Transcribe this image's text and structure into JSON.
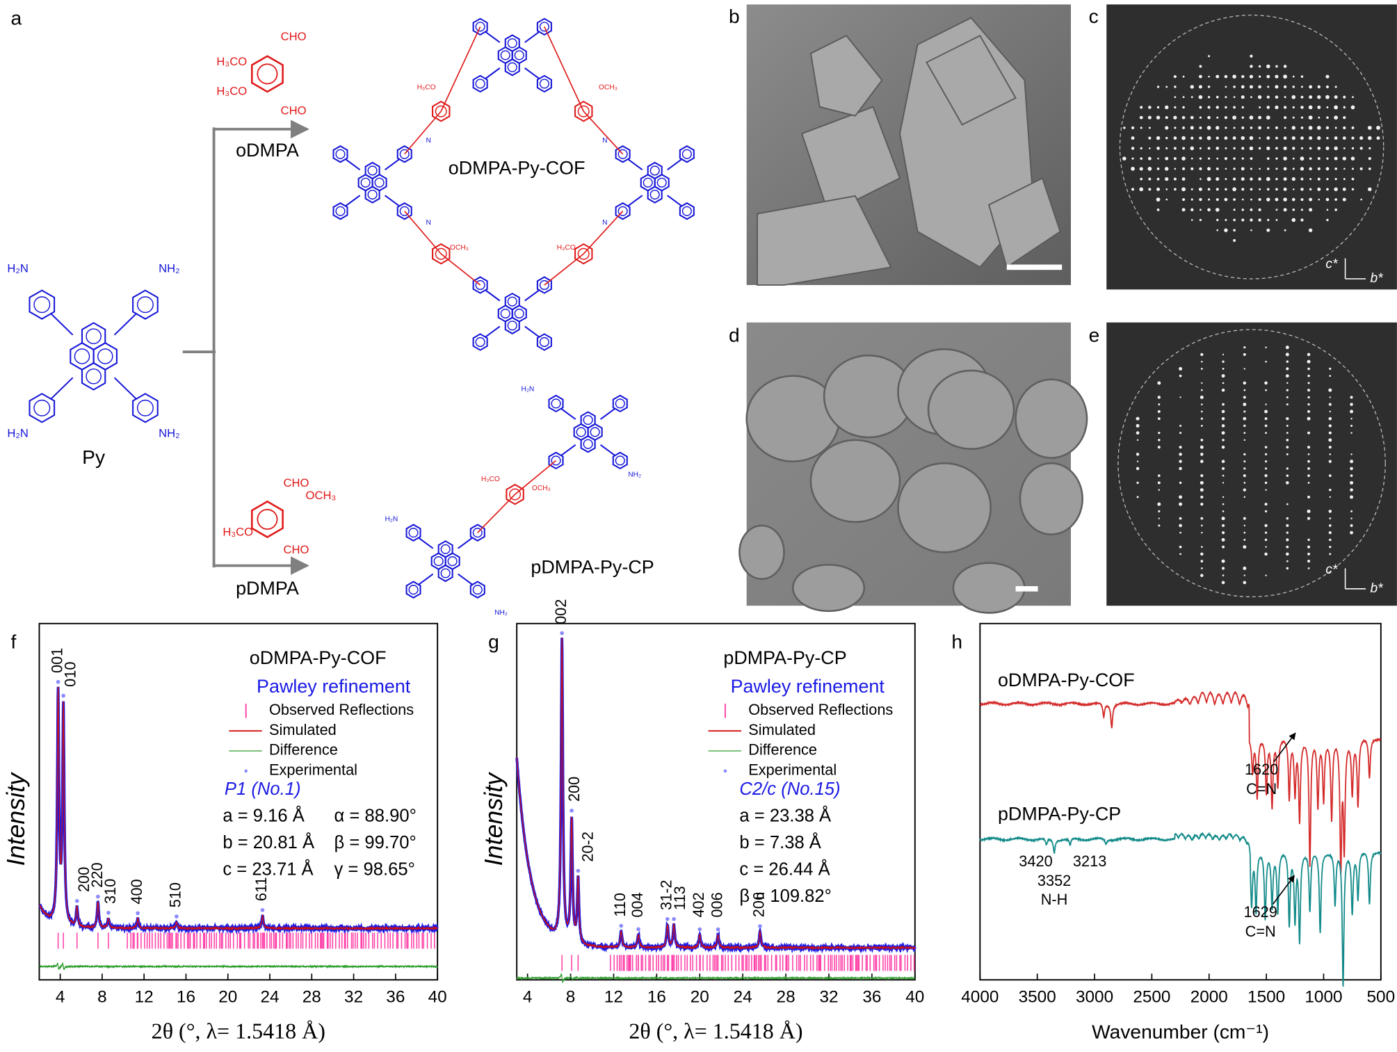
{
  "panel_letters": {
    "a": "a",
    "b": "b",
    "c": "c",
    "d": "d",
    "e": "e",
    "f": "f",
    "g": "g",
    "h": "h"
  },
  "scheme": {
    "monomer": {
      "label": "Py",
      "nh2": "NH₂",
      "h2n": "H₂N"
    },
    "odmpa": {
      "label": "oDMPA",
      "cho": "CHO",
      "h3co": "H₃CO"
    },
    "pdmpa": {
      "label": "pDMPA",
      "cho": "CHO",
      "och3": "OCH₃",
      "h3co": "H₃CO"
    },
    "cof": {
      "label": "oDMPA-Py-COF",
      "och3": "OCH₃",
      "h3co": "H₃CO",
      "n": "N"
    },
    "cp": {
      "label": "pDMPA-Py-CP",
      "nh2": "NH₂",
      "h2n": "H₂N",
      "och3": "OCH₃",
      "h3co": "H₃CO"
    }
  },
  "diffraction": {
    "axis_c": "c*",
    "axis_b": "b*"
  },
  "xrd": [
    {
      "title": "oDMPA-Py-COF",
      "method": "Pawley refinement",
      "legend": [
        "Observed Reflections",
        "Simulated",
        "Difference",
        "Experimental"
      ],
      "space_group": "P1 (No.1)",
      "params": [
        "a = 9.16 Å",
        "α = 88.90°",
        "b = 20.81 Å",
        "β = 99.70°",
        "c = 23.71 Å",
        "γ = 98.65°"
      ],
      "ylabel": "Intensity",
      "xlabel": "2θ (°, λ= 1.5418 Å)",
      "xlim": [
        2,
        40
      ],
      "xticks": [
        4,
        8,
        12,
        16,
        20,
        24,
        28,
        32,
        36,
        40
      ],
      "background": [
        0.18,
        0.11
      ],
      "colors": {
        "experimental": "#1a1ae6",
        "simulated": "#d01010",
        "difference": "#2f9e2f",
        "reflections": "#ff3fa8"
      },
      "peaks": [
        {
          "label": "001",
          "x": 3.8,
          "amp": 0.71
        },
        {
          "label": "010",
          "x": 4.3,
          "amp": 0.67
        },
        {
          "label": "200",
          "x": 5.6,
          "amp": 0.06
        },
        {
          "label": "220",
          "x": 7.6,
          "amp": 0.08
        },
        {
          "label": "310",
          "x": 8.6,
          "amp": 0.03
        },
        {
          "label": "400",
          "x": 11.4,
          "amp": 0.03
        },
        {
          "label": "510",
          "x": 15.1,
          "amp": 0.02
        },
        {
          "label": "611",
          "x": 23.3,
          "amp": 0.04
        }
      ]
    },
    {
      "title": "pDMPA-Py-CP",
      "method": "Pawley refinement",
      "legend": [
        "Observed Reflections",
        "Simulated",
        "Difference",
        "Experimental"
      ],
      "space_group": "C2/c (No.15)",
      "params": [
        "a = 23.38 Å",
        "b = 7.38 Å",
        "c = 26.44 Å",
        "β = 109.82°"
      ],
      "ylabel": "Intensity",
      "xlabel": "2θ (°, λ= 1.5418 Å)",
      "xlim": [
        3,
        40
      ],
      "xticks": [
        4,
        8,
        12,
        16,
        20,
        24,
        28,
        32,
        36,
        40
      ],
      "background": [
        0.64,
        0.05
      ],
      "colors": {
        "experimental": "#1a1ae6",
        "simulated": "#d01010",
        "difference": "#2f9e2f",
        "reflections": "#ff3fa8"
      },
      "peaks": [
        {
          "label": "002",
          "x": 7.2,
          "amp": 0.93
        },
        {
          "label": "200",
          "x": 8.1,
          "amp": 0.38
        },
        {
          "label": "20-2",
          "x": 8.7,
          "amp": 0.2
        },
        {
          "label": "110",
          "x": 12.7,
          "amp": 0.05
        },
        {
          "label": "004",
          "x": 14.3,
          "amp": 0.04
        },
        {
          "label": "31-2",
          "x": 17.0,
          "amp": 0.07
        },
        {
          "label": "113",
          "x": 17.6,
          "amp": 0.07
        },
        {
          "label": "402",
          "x": 20.0,
          "amp": 0.04
        },
        {
          "label": "006",
          "x": 21.7,
          "amp": 0.04
        },
        {
          "label": "206",
          "x": 25.6,
          "amp": 0.05
        }
      ]
    }
  ],
  "ir": {
    "xlabel": "Wavenumber (cm⁻¹)",
    "xlim": [
      4000,
      500
    ],
    "xticks": [
      4000,
      3500,
      3000,
      2500,
      2000,
      1500,
      1000,
      500
    ],
    "series": [
      {
        "name": "oDMPA-Py-COF",
        "color": "#d42a2a",
        "edge": 1650,
        "bands": [
          [
            2920,
            0.1
          ],
          [
            2850,
            0.17
          ],
          [
            1620,
            0.25
          ],
          [
            1580,
            0.45
          ],
          [
            1500,
            0.4
          ],
          [
            1450,
            0.5
          ],
          [
            1400,
            0.35
          ],
          [
            1300,
            0.45
          ],
          [
            1250,
            0.4
          ],
          [
            1210,
            0.6
          ],
          [
            1120,
            0.95
          ],
          [
            1050,
            0.5
          ],
          [
            1000,
            0.45
          ],
          [
            930,
            0.6
          ],
          [
            850,
            0.95
          ],
          [
            820,
            0.8
          ],
          [
            750,
            0.4
          ],
          [
            700,
            0.5
          ],
          [
            600,
            0.3
          ]
        ],
        "peak_labels": [
          {
            "wavenumber": 1620,
            "label": "C=N"
          }
        ]
      },
      {
        "name": "pDMPA-Py-CP",
        "color": "#138a8a",
        "edge": 1640,
        "bands": [
          [
            3420,
            0.05
          ],
          [
            3352,
            0.1
          ],
          [
            3213,
            0.05
          ],
          [
            2900,
            0.04
          ],
          [
            1629,
            0.4
          ],
          [
            1590,
            0.45
          ],
          [
            1510,
            0.5
          ],
          [
            1450,
            0.4
          ],
          [
            1400,
            0.45
          ],
          [
            1300,
            0.55
          ],
          [
            1250,
            0.5
          ],
          [
            1210,
            0.65
          ],
          [
            1120,
            0.45
          ],
          [
            1030,
            0.6
          ],
          [
            900,
            0.4
          ],
          [
            830,
            1.0
          ],
          [
            750,
            0.45
          ],
          [
            700,
            0.35
          ],
          [
            600,
            0.4
          ]
        ],
        "nh_bands": [
          3420,
          3352,
          3213
        ],
        "nh_label": "N-H",
        "peak_labels": [
          {
            "wavenumber": 1629,
            "label": "C=N"
          }
        ]
      }
    ]
  }
}
